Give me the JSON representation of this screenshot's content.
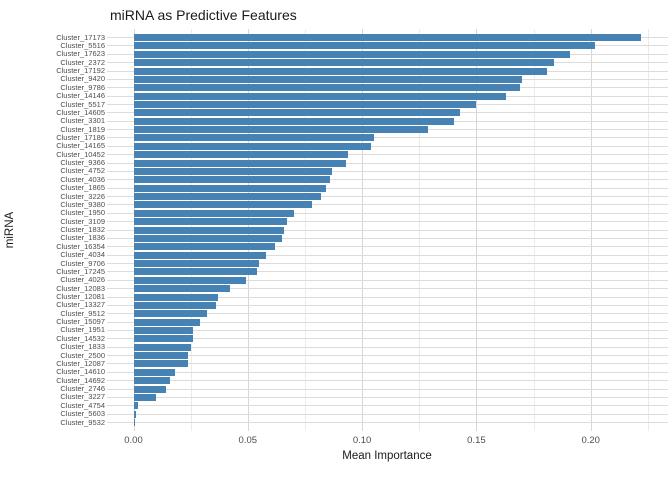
{
  "title": "miRNA as Predictive Features",
  "colors": {
    "bar": "#4682b4",
    "grid_major": "#d6d6d6",
    "grid_minor": "#ebebeb",
    "grid_row": "#dcdcdc",
    "axis_text": "#4d4d4d",
    "title_text": "#1a1a1a"
  },
  "chart_data": {
    "type": "bar",
    "orientation": "horizontal",
    "title": "miRNA as Predictive Features",
    "xlabel": "Mean Importance",
    "ylabel": "miRNA",
    "xlim": [
      -0.0116,
      0.2338
    ],
    "x_ticks": [
      0.0,
      0.05,
      0.1,
      0.15,
      0.2
    ],
    "x_tick_labels": [
      "0.00",
      "0.05",
      "0.10",
      "0.15",
      "0.20"
    ],
    "x_minor_ticks": [
      0.025,
      0.075,
      0.125,
      0.175,
      0.225
    ],
    "grid": true,
    "legend": false,
    "categories": [
      "Cluster_17173",
      "Cluster_5516",
      "Cluster_17623",
      "Cluster_2372",
      "Cluster_17192",
      "Cluster_9420",
      "Cluster_9786",
      "Cluster_14146",
      "Cluster_5517",
      "Cluster_14605",
      "Cluster_3301",
      "Cluster_1819",
      "Cluster_17186",
      "Cluster_14165",
      "Cluster_10452",
      "Cluster_9366",
      "Cluster_4752",
      "Cluster_4036",
      "Cluster_1865",
      "Cluster_3226",
      "Cluster_9380",
      "Cluster_1950",
      "Cluster_3109",
      "Cluster_1832",
      "Cluster_1836",
      "Cluster_16354",
      "Cluster_4034",
      "Cluster_9706",
      "Cluster_17245",
      "Cluster_4026",
      "Cluster_12083",
      "Cluster_12081",
      "Cluster_13327",
      "Cluster_9512",
      "Cluster_15097",
      "Cluster_1951",
      "Cluster_14532",
      "Cluster_1833",
      "Cluster_2500",
      "Cluster_12087",
      "Cluster_14610",
      "Cluster_14692",
      "Cluster_2746",
      "Cluster_3227",
      "Cluster_4754",
      "Cluster_5603",
      "Cluster_9532"
    ],
    "values": [
      0.222,
      0.202,
      0.191,
      0.184,
      0.181,
      0.17,
      0.169,
      0.163,
      0.15,
      0.143,
      0.14,
      0.129,
      0.105,
      0.104,
      0.094,
      0.093,
      0.087,
      0.086,
      0.084,
      0.082,
      0.078,
      0.07,
      0.067,
      0.066,
      0.065,
      0.062,
      0.058,
      0.055,
      0.054,
      0.049,
      0.042,
      0.037,
      0.036,
      0.032,
      0.029,
      0.026,
      0.026,
      0.025,
      0.024,
      0.024,
      0.018,
      0.016,
      0.014,
      0.01,
      0.002,
      0.001,
      0.0003
    ]
  }
}
